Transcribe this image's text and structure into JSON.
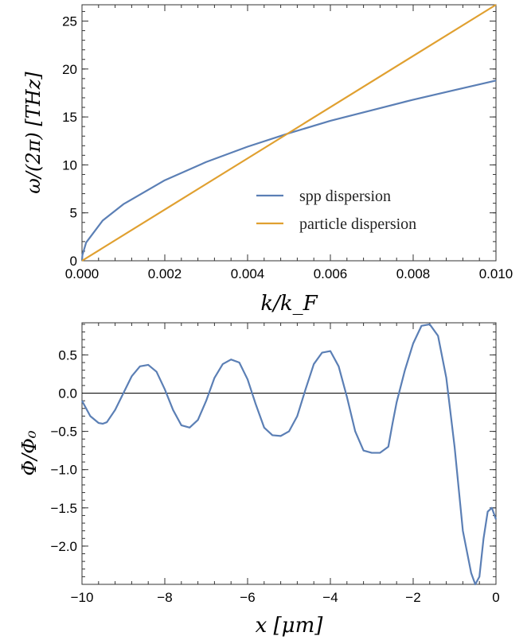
{
  "chart_data": [
    {
      "type": "line",
      "xlabel": "k/k_F",
      "ylabel": "ω/(2π) [THz]",
      "xlim": [
        0,
        0.01
      ],
      "ylim": [
        0,
        26.7
      ],
      "x_ticks": [
        "0.000",
        "0.002",
        "0.004",
        "0.006",
        "0.008",
        "0.010"
      ],
      "y_ticks": [
        "0",
        "5",
        "10",
        "15",
        "20",
        "25"
      ],
      "legend_position": "bottom-right",
      "series": [
        {
          "name": "spp dispersion",
          "color": "#5b7fb5",
          "x": [
            0,
            1e-05,
            0.0001,
            0.0005,
            0.001,
            0.002,
            0.003,
            0.004,
            0.005,
            0.006,
            0.007,
            0.008,
            0.009,
            0.01
          ],
          "y": [
            0,
            0.6,
            1.9,
            4.2,
            5.9,
            8.4,
            10.3,
            11.9,
            13.3,
            14.6,
            15.7,
            16.8,
            17.8,
            18.8
          ]
        },
        {
          "name": "particle dispersion",
          "color": "#e0a030",
          "x": [
            0,
            0.01
          ],
          "y": [
            0,
            26.7
          ]
        }
      ]
    },
    {
      "type": "line",
      "xlabel": "x [μm]",
      "ylabel": "Φ/Φ₀",
      "xlim": [
        -10,
        0
      ],
      "ylim": [
        -2.5,
        0.92
      ],
      "x_ticks": [
        "−10",
        "−8",
        "−6",
        "−4",
        "−2",
        "0"
      ],
      "y_ticks": [
        "0.5",
        "0.0",
        "−0.5",
        "−1.0",
        "−1.5",
        "−2.0"
      ],
      "reference_line_y": 0,
      "series": [
        {
          "color": "#5b7fb5",
          "x": [
            -10.0,
            -9.8,
            -9.6,
            -9.5,
            -9.4,
            -9.2,
            -9.0,
            -8.8,
            -8.6,
            -8.4,
            -8.2,
            -8.0,
            -7.8,
            -7.6,
            -7.4,
            -7.2,
            -7.0,
            -6.8,
            -6.6,
            -6.4,
            -6.2,
            -6.0,
            -5.8,
            -5.6,
            -5.4,
            -5.2,
            -5.0,
            -4.9,
            -4.8,
            -4.6,
            -4.4,
            -4.2,
            -4.0,
            -3.8,
            -3.6,
            -3.4,
            -3.2,
            -3.0,
            -2.8,
            -2.6,
            -2.5,
            -2.4,
            -2.2,
            -2.0,
            -1.8,
            -1.6,
            -1.4,
            -1.2,
            -1.0,
            -0.8,
            -0.6,
            -0.5,
            -0.4,
            -0.3,
            -0.2,
            -0.1,
            0.0
          ],
          "y": [
            -0.1,
            -0.3,
            -0.39,
            -0.4,
            -0.38,
            -0.22,
            0.0,
            0.22,
            0.35,
            0.37,
            0.28,
            0.05,
            -0.22,
            -0.42,
            -0.45,
            -0.35,
            -0.1,
            0.2,
            0.38,
            0.44,
            0.4,
            0.18,
            -0.15,
            -0.45,
            -0.55,
            -0.56,
            -0.5,
            -0.4,
            -0.3,
            0.05,
            0.38,
            0.53,
            0.55,
            0.35,
            -0.05,
            -0.5,
            -0.75,
            -0.78,
            -0.78,
            -0.7,
            -0.4,
            -0.12,
            0.3,
            0.65,
            0.88,
            0.9,
            0.75,
            0.2,
            -0.7,
            -1.8,
            -2.35,
            -2.5,
            -2.4,
            -1.9,
            -1.55,
            -1.5,
            -1.65
          ]
        }
      ]
    }
  ]
}
